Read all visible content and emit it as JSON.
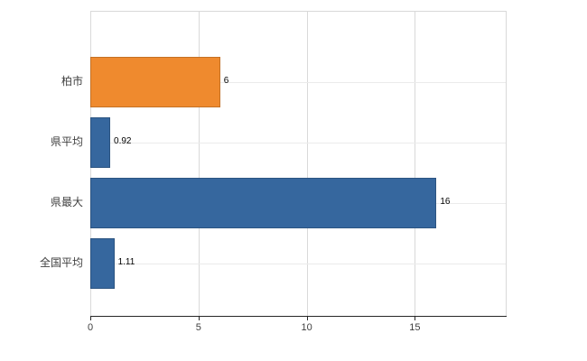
{
  "chart_data": {
    "type": "bar",
    "orientation": "horizontal",
    "title": "",
    "xlabel": "",
    "ylabel": "",
    "categories": [
      "柏市",
      "県平均",
      "県最大",
      "全国平均"
    ],
    "values": [
      6,
      0.92,
      16,
      1.11
    ],
    "value_labels": [
      "6",
      "0.92",
      "16",
      "1.11"
    ],
    "bar_colors": [
      "#ef8a2e",
      "#36679e",
      "#36679e",
      "#36679e"
    ],
    "xlim": [
      0,
      19.2
    ],
    "xticks": [
      0,
      5,
      10,
      15
    ],
    "xtick_labels": [
      "0",
      "5",
      "10",
      "15"
    ],
    "grid": true,
    "legend": "none"
  },
  "colors": {
    "orange": "#ef8a2e",
    "blue": "#36679e",
    "gridline": "#d9d9d9",
    "minor_gridline": "#ebebeb",
    "axis": "#262626",
    "label_text": "#404040",
    "value_text": "#000000",
    "background": "#ffffff"
  }
}
